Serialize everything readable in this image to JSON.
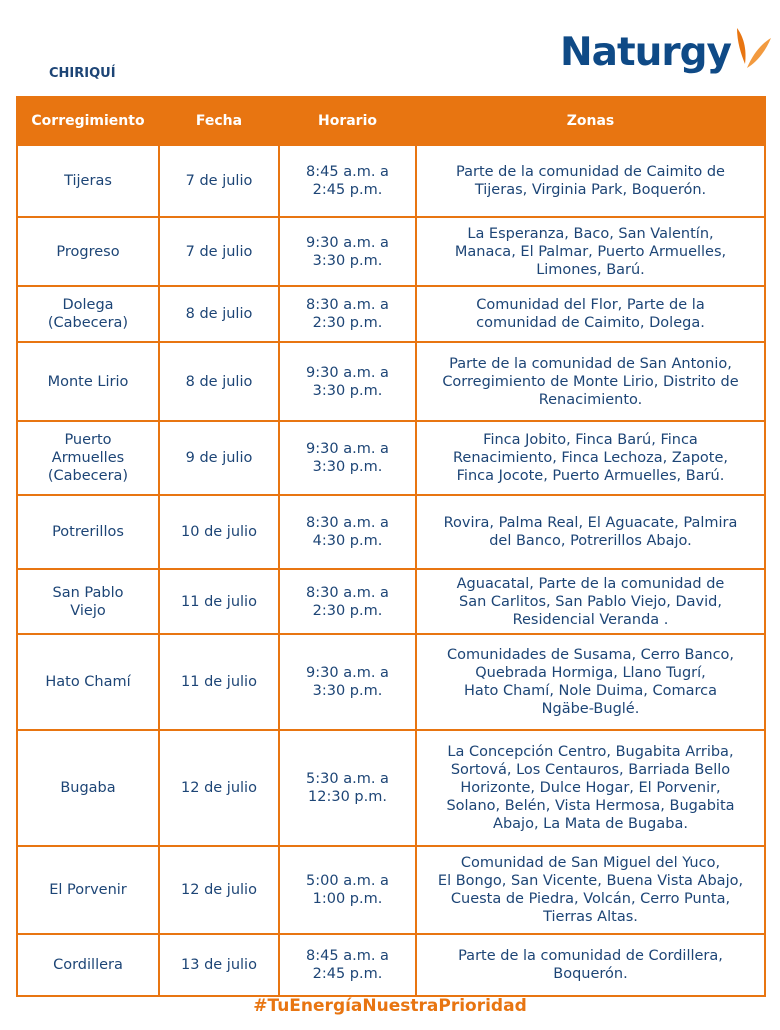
{
  "region": "CHIRIQUÍ",
  "logo": {
    "text": "Naturgy",
    "brand_color": "#0f4a86",
    "accent_color": "#e87511"
  },
  "table": {
    "headers": [
      "Corregimiento",
      "Fecha",
      "Horario",
      "Zonas"
    ],
    "rows": [
      {
        "corregimiento": "Tijeras",
        "fecha": "7 de julio",
        "horario": "8:45 a.m. a\n2:45 p.m.",
        "zonas": "Parte de la comunidad de Caimito de\nTijeras, Virginia Park, Boquerón."
      },
      {
        "corregimiento": "Progreso",
        "fecha": "7 de julio",
        "horario": "9:30 a.m. a\n3:30 p.m.",
        "zonas": "La Esperanza, Baco, San Valentín,\nManaca, El Palmar, Puerto Armuelles,\nLimones, Barú."
      },
      {
        "corregimiento": "Dolega\n(Cabecera)",
        "fecha": "8 de julio",
        "horario": "8:30 a.m. a\n2:30 p.m.",
        "zonas": "Comunidad del Flor, Parte de la\ncomunidad de Caimito, Dolega."
      },
      {
        "corregimiento": "Monte Lirio",
        "fecha": "8 de julio",
        "horario": "9:30 a.m. a\n3:30 p.m.",
        "zonas": "Parte de la comunidad de San Antonio,\nCorregimiento de Monte Lirio, Distrito de\nRenacimiento."
      },
      {
        "corregimiento": "Puerto\nArmuelles\n(Cabecera)",
        "fecha": "9 de julio",
        "horario": "9:30 a.m. a\n3:30 p.m.",
        "zonas": "Finca Jobito, Finca Barú, Finca\nRenacimiento, Finca Lechoza, Zapote,\nFinca Jocote, Puerto Armuelles, Barú."
      },
      {
        "corregimiento": "Potrerillos",
        "fecha": "10 de julio",
        "horario": "8:30 a.m. a\n4:30 p.m.",
        "zonas": "Rovira, Palma Real, El Aguacate, Palmira\ndel Banco, Potrerillos Abajo."
      },
      {
        "corregimiento": "San Pablo\nViejo",
        "fecha": "11 de julio",
        "horario": "8:30 a.m. a\n2:30 p.m.",
        "zonas": "Aguacatal, Parte de la comunidad de\nSan Carlitos, San Pablo Viejo, David,\nResidencial Veranda ."
      },
      {
        "corregimiento": "Hato Chamí",
        "fecha": "11 de julio",
        "horario": "9:30 a.m. a\n3:30 p.m.",
        "zonas": "Comunidades de Susama, Cerro Banco,\nQuebrada Hormiga, Llano Tugrí,\nHato Chamí, Nole Duima, Comarca\nNgäbe-Buglé."
      },
      {
        "corregimiento": "Bugaba",
        "fecha": "12 de julio",
        "horario": "5:30 a.m. a\n12:30 p.m.",
        "zonas": "La Concepción Centro, Bugabita Arriba,\nSortová, Los Centauros, Barriada Bello\nHorizonte, Dulce Hogar, El Porvenir,\nSolano, Belén, Vista Hermosa, Bugabita\nAbajo, La Mata de Bugaba."
      },
      {
        "corregimiento": "El Porvenir",
        "fecha": "12 de julio",
        "horario": "5:00 a.m. a\n1:00 p.m.",
        "zonas": "Comunidad de San Miguel del Yuco,\nEl Bongo, San Vicente, Buena Vista Abajo,\nCuesta de Piedra, Volcán, Cerro Punta,\nTierras Altas."
      },
      {
        "corregimiento": "Cordillera",
        "fecha": "13 de julio",
        "horario": "8:45 a.m. a\n2:45 p.m.",
        "zonas": "Parte de la comunidad de Cordillera,\nBoquerón."
      }
    ]
  },
  "footer": "#TuEnergíaNuestraPrioridad"
}
